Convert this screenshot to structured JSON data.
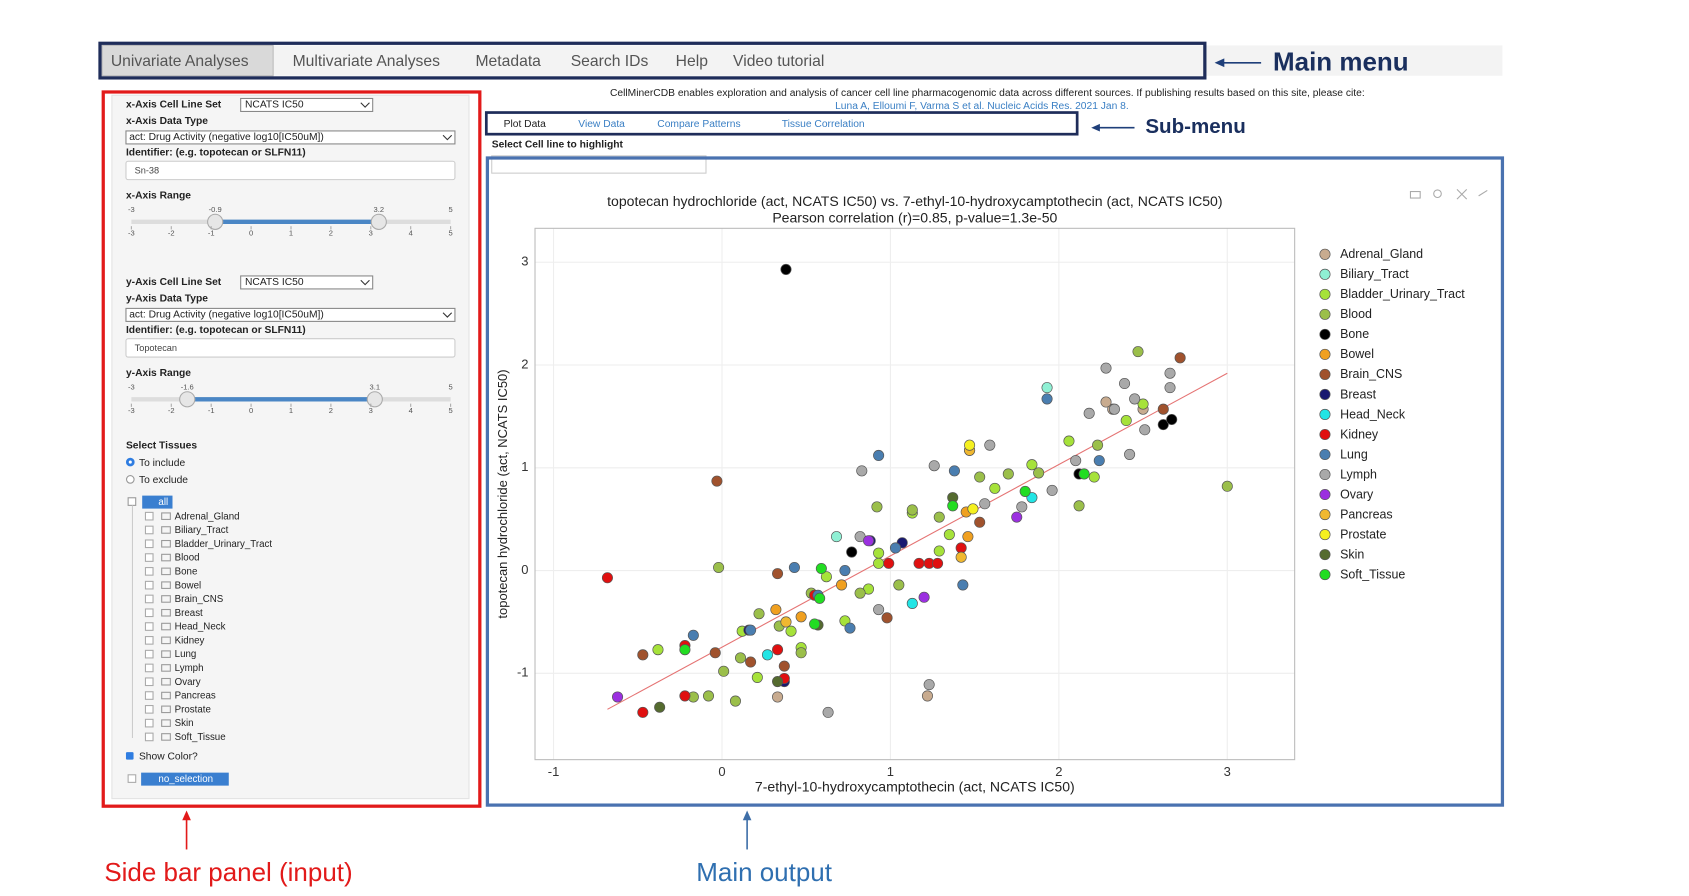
{
  "menu": {
    "tabs": [
      "Univariate Analyses",
      "Multivariate Analyses",
      "Metadata",
      "Search IDs",
      "Help",
      "Video tutorial"
    ],
    "active": 0
  },
  "header": {
    "text": "CellMinerCDB enables exploration and analysis of cancer cell line pharmacogenomic data across different sources. If publishing results based on this site, please cite:",
    "citation": "Luna A, Elloumi F, Varma S et al. Nucleic Acids Res. 2021 Jan 8."
  },
  "sidebar": {
    "x": {
      "set_label": "x-Axis Cell Line Set",
      "set": "NCATS IC50",
      "type_label": "x-Axis Data Type",
      "type": "act: Drug Activity (negative log10[IC50uM])",
      "identifier_label": "Identifier: (e.g. topotecan or SLFN11)",
      "identifier": "Sn-38",
      "range_label": "x-Axis Range",
      "range": {
        "min": -3,
        "max": 5,
        "low": -0.9,
        "high": 3.2,
        "ticks": [
          -3,
          -2,
          -1,
          0,
          1,
          2,
          3,
          4,
          5
        ]
      }
    },
    "y": {
      "set_label": "y-Axis Cell Line Set",
      "set": "NCATS IC50",
      "type_label": "y-Axis Data Type",
      "type": "act: Drug Activity (negative log10[IC50uM])",
      "identifier_label": "Identifier: (e.g. topotecan or SLFN11)",
      "identifier": "Topotecan",
      "range_label": "y-Axis Range",
      "range": {
        "min": -3,
        "max": 5,
        "low": -1.6,
        "high": 3.1,
        "ticks": [
          -3,
          -2,
          -1,
          0,
          1,
          2,
          3,
          4,
          5
        ]
      }
    },
    "tissues_label": "Select Tissues",
    "include": "To include",
    "exclude": "To exclude",
    "tree_root": "all",
    "tissues": [
      "Adrenal_Gland",
      "Biliary_Tract",
      "Bladder_Urinary_Tract",
      "Blood",
      "Bone",
      "Bowel",
      "Brain_CNS",
      "Breast",
      "Head_Neck",
      "Kidney",
      "Lung",
      "Lymph",
      "Ovary",
      "Pancreas",
      "Prostate",
      "Skin",
      "Soft_Tissue"
    ],
    "show_color": "Show Color?",
    "no_selection": "no_selection"
  },
  "submenu": {
    "tabs": [
      "Plot Data",
      "View Data",
      "Compare Patterns",
      "Tissue Correlation"
    ]
  },
  "highlight_label": "Select Cell line to highlight",
  "annotations": {
    "main_menu": "Main menu",
    "sub_menu": "Sub-menu",
    "side_bar": "Side bar panel (input)",
    "main_output": "Main output"
  },
  "chart_data": {
    "type": "scatter",
    "title": "topotecan hydrochloride (act, NCATS IC50) vs. 7-ethyl-10-hydroxycamptothecin (act, NCATS IC50)",
    "subtitle": "Pearson correlation (r)=0.85, p-value=1.3e-50",
    "x_label": "7-ethyl-10-hydroxycamptothecin (act, NCATS IC50)",
    "y_label": "topotecan hydrochloride (act, NCATS IC50)",
    "xlim": [
      -1.11,
      3.4
    ],
    "ylim": [
      -1.84,
      3.33
    ],
    "xticks": [
      -1,
      0,
      1,
      2,
      3
    ],
    "yticks": [
      -1,
      0,
      1,
      2,
      3
    ],
    "grid": true,
    "trendline": {
      "color": "#e57373",
      "x": [
        -0.68,
        3.0
      ],
      "y": [
        -1.35,
        1.92
      ]
    },
    "series": [
      {
        "name": "Adrenal_Gland",
        "color": "#c8ab8f",
        "x": [
          0.33,
          1.22,
          2.32,
          2.5,
          2.28
        ],
        "y": [
          -1.23,
          -1.22,
          1.57,
          1.57,
          1.64
        ]
      },
      {
        "name": "Biliary_Tract",
        "color": "#8ff0d4",
        "x": [
          0.68,
          1.93
        ],
        "y": [
          0.33,
          1.78
        ]
      },
      {
        "name": "Bladder_Urinary_Tract",
        "color": "#a6e23a",
        "x": [
          -0.38,
          0.12,
          0.41,
          0.62,
          0.73,
          0.87,
          0.93,
          1.13,
          1.35,
          1.62,
          1.84,
          2.21,
          2.4,
          2.5,
          2.06,
          0.21,
          0.47,
          0.93,
          1.29
        ],
        "y": [
          -0.77,
          -0.59,
          -0.59,
          -0.06,
          -0.49,
          -0.18,
          0.17,
          0.56,
          0.35,
          0.8,
          1.03,
          0.91,
          1.46,
          1.62,
          1.26,
          -1.04,
          -0.75,
          0.07,
          0.19
        ]
      },
      {
        "name": "Blood",
        "color": "#9bbf4a",
        "x": [
          -0.02,
          -0.17,
          -0.08,
          0.08,
          0.01,
          0.47,
          0.34,
          0.53,
          0.92,
          1.13,
          1.29,
          1.53,
          1.7,
          1.88,
          2.23,
          3.0,
          2.47,
          2.12,
          0.82,
          0.11,
          1.05,
          0.22
        ],
        "y": [
          0.03,
          -1.23,
          -1.22,
          -1.27,
          -0.98,
          -0.8,
          -0.54,
          -0.22,
          0.62,
          0.59,
          0.52,
          0.91,
          0.94,
          0.95,
          1.22,
          0.82,
          2.13,
          0.63,
          -0.22,
          -0.85,
          -0.14,
          -0.42
        ]
      },
      {
        "name": "Bone",
        "color": "#000000",
        "x": [
          0.38,
          2.12,
          2.62,
          2.67,
          0.77
        ],
        "y": [
          2.93,
          0.94,
          1.42,
          1.47,
          0.18
        ]
      },
      {
        "name": "Bowel",
        "color": "#f0a020",
        "x": [
          0.32,
          0.47,
          1.47,
          1.45,
          0.71,
          1.46
        ],
        "y": [
          -0.38,
          -0.45,
          1.17,
          0.57,
          -0.14,
          0.33
        ]
      },
      {
        "name": "Brain_CNS",
        "color": "#a0522d",
        "x": [
          -0.03,
          2.72,
          -0.47,
          -0.04,
          0.98,
          0.17,
          0.37,
          1.53,
          0.33,
          2.62
        ],
        "y": [
          0.87,
          2.07,
          -0.82,
          -0.8,
          -0.46,
          -0.89,
          -0.93,
          0.47,
          -0.03,
          1.57
        ]
      },
      {
        "name": "Breast",
        "color": "#191970",
        "x": [
          0.16,
          1.07,
          0.88,
          0.37
        ],
        "y": [
          -0.58,
          0.27,
          0.29,
          -1.08
        ]
      },
      {
        "name": "Head_Neck",
        "color": "#22e5e5",
        "x": [
          0.27,
          1.13,
          1.84
        ],
        "y": [
          -0.82,
          -0.32,
          0.71
        ]
      },
      {
        "name": "Kidney",
        "color": "#e01010",
        "x": [
          -0.68,
          -0.47,
          -0.22,
          -0.22,
          0.33,
          0.37,
          0.99,
          1.17,
          1.23,
          1.42,
          1.28,
          0.55
        ],
        "y": [
          -0.07,
          -1.38,
          -0.73,
          -1.22,
          -0.77,
          -1.05,
          0.07,
          0.07,
          0.07,
          0.22,
          0.07,
          -0.24
        ]
      },
      {
        "name": "Lung",
        "color": "#4a7eb0",
        "x": [
          -0.17,
          0.17,
          0.43,
          0.57,
          0.93,
          1.38,
          1.93,
          1.03,
          2.24,
          0.76,
          0.73,
          1.43
        ],
        "y": [
          -0.63,
          -0.58,
          0.03,
          -0.24,
          1.12,
          0.97,
          1.67,
          0.22,
          1.07,
          -0.56,
          0.0,
          -0.14
        ]
      },
      {
        "name": "Lymph",
        "color": "#a9a9a9",
        "x": [
          0.83,
          1.23,
          0.63,
          2.28,
          2.39,
          2.45,
          2.66,
          2.42,
          2.18,
          1.96,
          1.78,
          1.59,
          1.26,
          0.82,
          0.93,
          1.56,
          2.51,
          2.1,
          2.33,
          2.66
        ],
        "y": [
          0.97,
          -1.11,
          -1.38,
          1.97,
          1.82,
          1.67,
          1.92,
          1.13,
          1.53,
          0.78,
          0.62,
          1.22,
          1.02,
          0.33,
          -0.38,
          0.65,
          1.37,
          1.07,
          1.57,
          1.78
        ]
      },
      {
        "name": "Ovary",
        "color": "#9b30e0",
        "x": [
          -0.62,
          0.87,
          1.2,
          1.75
        ],
        "y": [
          -1.23,
          0.29,
          -0.26,
          0.52
        ]
      },
      {
        "name": "Pancreas",
        "color": "#f0b830",
        "x": [
          1.47,
          1.42,
          0.38
        ],
        "y": [
          1.17,
          0.13,
          -0.5
        ]
      },
      {
        "name": "Prostate",
        "color": "#f5f020",
        "x": [
          1.47,
          1.49
        ],
        "y": [
          1.22,
          0.6
        ]
      },
      {
        "name": "Skin",
        "color": "#556b2f",
        "x": [
          0.33,
          -0.37,
          0.57,
          1.37
        ],
        "y": [
          -1.08,
          -1.33,
          -0.53,
          0.71
        ]
      },
      {
        "name": "Soft_Tissue",
        "color": "#22dd22",
        "x": [
          -0.22,
          0.58,
          0.55,
          1.37,
          1.8,
          2.15,
          0.59
        ],
        "y": [
          -0.77,
          -0.27,
          -0.52,
          0.63,
          0.77,
          0.94,
          0.02
        ]
      }
    ]
  }
}
